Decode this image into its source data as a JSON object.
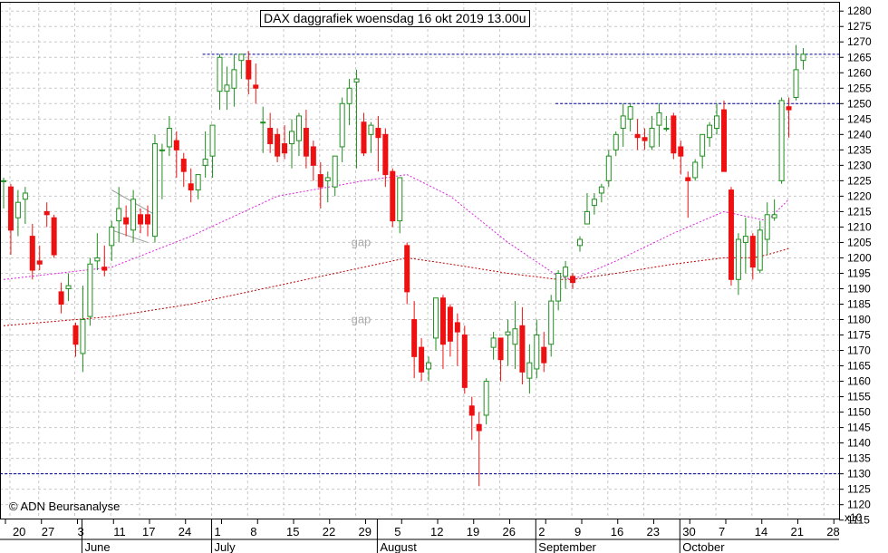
{
  "chart_data": {
    "type": "candlestick",
    "title": "DAX daggrafiek woensdag 16 okt 2019 13.00u",
    "copyright": "© ADN Beursanalyse",
    "y_axis": {
      "min": 1115,
      "max": 1280,
      "step": 5,
      "side": "right",
      "scale_label": "x10",
      "ticks": [
        1280,
        1275,
        1270,
        1265,
        1260,
        1255,
        1250,
        1245,
        1240,
        1235,
        1230,
        1225,
        1220,
        1215,
        1210,
        1205,
        1200,
        1195,
        1190,
        1185,
        1180,
        1175,
        1170,
        1165,
        1160,
        1155,
        1150,
        1145,
        1140,
        1135,
        1130,
        1125,
        1120,
        1115
      ]
    },
    "x_axis": {
      "day_ticks": [
        "20",
        "27",
        "3",
        "11",
        "17",
        "24",
        "1",
        "8",
        "15",
        "22",
        "29",
        "5",
        "12",
        "19",
        "26",
        "2",
        "9",
        "16",
        "23",
        "30",
        "7",
        "14",
        "21",
        "28"
      ],
      "month_labels": [
        "June",
        "July",
        "August",
        "September",
        "October"
      ]
    },
    "grid": true,
    "colors": {
      "up": "#1f8f1f",
      "down": "#ee1111",
      "ma_short": "#dd22dd",
      "ma_long": "#bb0000",
      "level": "#000099"
    },
    "candles": [
      {
        "o": 1225,
        "h": 1226,
        "l": 1216,
        "c": 1225
      },
      {
        "o": 1223,
        "h": 1224,
        "l": 1201,
        "c": 1209
      },
      {
        "o": 1213,
        "h": 1222,
        "l": 1207,
        "c": 1218
      },
      {
        "o": 1219,
        "h": 1223,
        "l": 1211,
        "c": 1221
      },
      {
        "o": 1207,
        "h": 1211,
        "l": 1193,
        "c": 1196
      },
      {
        "o": 1199,
        "h": 1204,
        "l": 1196,
        "c": 1198
      },
      {
        "o": 1215,
        "h": 1218,
        "l": 1210,
        "c": 1214
      },
      {
        "o": 1213,
        "h": 1214,
        "l": 1200,
        "c": 1201
      },
      {
        "o": 1189,
        "h": 1192,
        "l": 1182,
        "c": 1185
      },
      {
        "o": 1190,
        "h": 1195,
        "l": 1186,
        "c": 1191
      },
      {
        "o": 1178,
        "h": 1179,
        "l": 1168,
        "c": 1172
      },
      {
        "o": 1169,
        "h": 1191,
        "l": 1163,
        "c": 1180
      },
      {
        "o": 1181,
        "h": 1200,
        "l": 1178,
        "c": 1198
      },
      {
        "o": 1199,
        "h": 1208,
        "l": 1196,
        "c": 1200
      },
      {
        "o": 1197,
        "h": 1204,
        "l": 1194,
        "c": 1196
      },
      {
        "o": 1204,
        "h": 1212,
        "l": 1199,
        "c": 1210
      },
      {
        "o": 1212,
        "h": 1223,
        "l": 1205,
        "c": 1216
      },
      {
        "o": 1213,
        "h": 1217,
        "l": 1207,
        "c": 1211
      },
      {
        "o": 1209,
        "h": 1222,
        "l": 1205,
        "c": 1219
      },
      {
        "o": 1214,
        "h": 1216,
        "l": 1208,
        "c": 1211
      },
      {
        "o": 1214,
        "h": 1217,
        "l": 1207,
        "c": 1211
      },
      {
        "o": 1207,
        "h": 1240,
        "l": 1205,
        "c": 1237
      },
      {
        "o": 1235,
        "h": 1237,
        "l": 1219,
        "c": 1235
      },
      {
        "o": 1236,
        "h": 1246,
        "l": 1233,
        "c": 1242
      },
      {
        "o": 1238,
        "h": 1241,
        "l": 1226,
        "c": 1235
      },
      {
        "o": 1232,
        "h": 1234,
        "l": 1223,
        "c": 1228
      },
      {
        "o": 1224,
        "h": 1229,
        "l": 1218,
        "c": 1222
      },
      {
        "o": 1222,
        "h": 1227,
        "l": 1219,
        "c": 1227
      },
      {
        "o": 1230,
        "h": 1241,
        "l": 1226,
        "c": 1232
      },
      {
        "o": 1233,
        "h": 1243,
        "l": 1226,
        "c": 1243
      },
      {
        "o": 1254,
        "h": 1266,
        "l": 1248,
        "c": 1265
      },
      {
        "o": 1254,
        "h": 1262,
        "l": 1248,
        "c": 1256
      },
      {
        "o": 1255,
        "h": 1266,
        "l": 1249,
        "c": 1261
      },
      {
        "o": 1264,
        "h": 1266,
        "l": 1258,
        "c": 1266
      },
      {
        "o": 1264,
        "h": 1267,
        "l": 1253,
        "c": 1258
      },
      {
        "o": 1256,
        "h": 1263,
        "l": 1250,
        "c": 1255
      },
      {
        "o": 1244,
        "h": 1249,
        "l": 1234,
        "c": 1244
      },
      {
        "o": 1242,
        "h": 1247,
        "l": 1234,
        "c": 1237
      },
      {
        "o": 1240,
        "h": 1242,
        "l": 1231,
        "c": 1233
      },
      {
        "o": 1237,
        "h": 1243,
        "l": 1232,
        "c": 1234
      },
      {
        "o": 1237,
        "h": 1245,
        "l": 1229,
        "c": 1241
      },
      {
        "o": 1238,
        "h": 1247,
        "l": 1233,
        "c": 1246
      },
      {
        "o": 1242,
        "h": 1248,
        "l": 1229,
        "c": 1233
      },
      {
        "o": 1236,
        "h": 1238,
        "l": 1225,
        "c": 1230
      },
      {
        "o": 1227,
        "h": 1231,
        "l": 1216,
        "c": 1223
      },
      {
        "o": 1225,
        "h": 1228,
        "l": 1218,
        "c": 1226
      },
      {
        "o": 1223,
        "h": 1233,
        "l": 1220,
        "c": 1233
      },
      {
        "o": 1236,
        "h": 1252,
        "l": 1231,
        "c": 1250
      },
      {
        "o": 1250,
        "h": 1258,
        "l": 1243,
        "c": 1255
      },
      {
        "o": 1257,
        "h": 1261,
        "l": 1229,
        "c": 1258
      },
      {
        "o": 1244,
        "h": 1247,
        "l": 1233,
        "c": 1234
      },
      {
        "o": 1240,
        "h": 1244,
        "l": 1234,
        "c": 1243
      },
      {
        "o": 1242,
        "h": 1246,
        "l": 1228,
        "c": 1239
      },
      {
        "o": 1240,
        "h": 1242,
        "l": 1223,
        "c": 1227
      },
      {
        "o": 1228,
        "h": 1229,
        "l": 1210,
        "c": 1212
      },
      {
        "o": 1212,
        "h": 1226,
        "l": 1208,
        "c": 1226
      },
      {
        "o": 1204,
        "h": 1205,
        "l": 1185,
        "c": 1189
      },
      {
        "o": 1180,
        "h": 1186,
        "l": 1161,
        "c": 1168
      },
      {
        "o": 1171,
        "h": 1174,
        "l": 1160,
        "c": 1163
      },
      {
        "o": 1164,
        "h": 1168,
        "l": 1160,
        "c": 1166
      },
      {
        "o": 1174,
        "h": 1187,
        "l": 1170,
        "c": 1187
      },
      {
        "o": 1187,
        "h": 1188,
        "l": 1164,
        "c": 1172
      },
      {
        "o": 1184,
        "h": 1185,
        "l": 1168,
        "c": 1173
      },
      {
        "o": 1179,
        "h": 1182,
        "l": 1165,
        "c": 1176
      },
      {
        "o": 1175,
        "h": 1178,
        "l": 1156,
        "c": 1158
      },
      {
        "o": 1152,
        "h": 1155,
        "l": 1141,
        "c": 1149
      },
      {
        "o": 1146,
        "h": 1150,
        "l": 1126,
        "c": 1144
      },
      {
        "o": 1149,
        "h": 1161,
        "l": 1146,
        "c": 1160
      },
      {
        "o": 1171,
        "h": 1176,
        "l": 1167,
        "c": 1174
      },
      {
        "o": 1174,
        "h": 1174,
        "l": 1160,
        "c": 1167
      },
      {
        "o": 1175,
        "h": 1180,
        "l": 1165,
        "c": 1176
      },
      {
        "o": 1172,
        "h": 1186,
        "l": 1164,
        "c": 1177
      },
      {
        "o": 1178,
        "h": 1184,
        "l": 1159,
        "c": 1163
      },
      {
        "o": 1161,
        "h": 1172,
        "l": 1156,
        "c": 1166
      },
      {
        "o": 1164,
        "h": 1180,
        "l": 1161,
        "c": 1175
      },
      {
        "o": 1171,
        "h": 1176,
        "l": 1163,
        "c": 1166
      },
      {
        "o": 1172,
        "h": 1188,
        "l": 1168,
        "c": 1186
      },
      {
        "o": 1186,
        "h": 1196,
        "l": 1183,
        "c": 1195
      },
      {
        "o": 1194,
        "h": 1199,
        "l": 1190,
        "c": 1197
      },
      {
        "o": 1194,
        "h": 1195,
        "l": 1190,
        "c": 1192
      },
      {
        "o": 1204,
        "h": 1207,
        "l": 1202,
        "c": 1206
      },
      {
        "o": 1211,
        "h": 1221,
        "l": 1211,
        "c": 1215
      },
      {
        "o": 1217,
        "h": 1221,
        "l": 1214,
        "c": 1219
      },
      {
        "o": 1221,
        "h": 1224,
        "l": 1218,
        "c": 1223
      },
      {
        "o": 1225,
        "h": 1235,
        "l": 1223,
        "c": 1233
      },
      {
        "o": 1235,
        "h": 1241,
        "l": 1233,
        "c": 1240
      },
      {
        "o": 1242,
        "h": 1250,
        "l": 1236,
        "c": 1246
      },
      {
        "o": 1245,
        "h": 1250,
        "l": 1241,
        "c": 1249
      },
      {
        "o": 1240,
        "h": 1245,
        "l": 1235,
        "c": 1239
      },
      {
        "o": 1239,
        "h": 1242,
        "l": 1235,
        "c": 1238
      },
      {
        "o": 1236,
        "h": 1246,
        "l": 1235,
        "c": 1242
      },
      {
        "o": 1243,
        "h": 1250,
        "l": 1236,
        "c": 1247
      },
      {
        "o": 1242,
        "h": 1246,
        "l": 1241,
        "c": 1242
      },
      {
        "o": 1246,
        "h": 1247,
        "l": 1232,
        "c": 1234
      },
      {
        "o": 1236,
        "h": 1238,
        "l": 1227,
        "c": 1233
      },
      {
        "o": 1226,
        "h": 1228,
        "l": 1213,
        "c": 1225
      },
      {
        "o": 1226,
        "h": 1232,
        "l": 1225,
        "c": 1231
      },
      {
        "o": 1233,
        "h": 1240,
        "l": 1229,
        "c": 1240
      },
      {
        "o": 1239,
        "h": 1244,
        "l": 1236,
        "c": 1243
      },
      {
        "o": 1242,
        "h": 1250,
        "l": 1240,
        "c": 1246
      },
      {
        "o": 1248,
        "h": 1251,
        "l": 1228,
        "c": 1228
      },
      {
        "o": 1222,
        "h": 1223,
        "l": 1191,
        "c": 1193
      },
      {
        "o": 1193,
        "h": 1208,
        "l": 1188,
        "c": 1206
      },
      {
        "o": 1205,
        "h": 1213,
        "l": 1195,
        "c": 1207
      },
      {
        "o": 1207,
        "h": 1208,
        "l": 1193,
        "c": 1197
      },
      {
        "o": 1196,
        "h": 1212,
        "l": 1195,
        "c": 1209
      },
      {
        "o": 1206,
        "h": 1218,
        "l": 1201,
        "c": 1214
      },
      {
        "o": 1213,
        "h": 1219,
        "l": 1212,
        "c": 1214
      },
      {
        "o": 1225,
        "h": 1252,
        "l": 1224,
        "c": 1251
      },
      {
        "o": 1249,
        "h": 1252,
        "l": 1239,
        "c": 1248
      },
      {
        "o": 1252,
        "h": 1269,
        "l": 1251,
        "c": 1261
      },
      {
        "o": 1264,
        "h": 1268,
        "l": 1261,
        "c": 1266
      }
    ],
    "moving_averages": [
      {
        "color": "#dd22dd",
        "points": [
          [
            0,
            1193
          ],
          [
            15,
            1197
          ],
          [
            26,
            1207
          ],
          [
            38,
            1220
          ],
          [
            50,
            1225
          ],
          [
            56,
            1227
          ],
          [
            62,
            1220
          ],
          [
            70,
            1205
          ],
          [
            77,
            1194
          ],
          [
            79,
            1193
          ],
          [
            85,
            1199
          ],
          [
            93,
            1208
          ],
          [
            100,
            1215
          ],
          [
            104,
            1213
          ],
          [
            106,
            1212
          ],
          [
            109,
            1219
          ]
        ]
      },
      {
        "color": "#bb0000",
        "points": [
          [
            0,
            1178
          ],
          [
            15,
            1181
          ],
          [
            26,
            1185
          ],
          [
            38,
            1191
          ],
          [
            50,
            1197
          ],
          [
            56,
            1200
          ],
          [
            62,
            1198
          ],
          [
            70,
            1195
          ],
          [
            77,
            1193
          ],
          [
            79,
            1193
          ],
          [
            85,
            1195
          ],
          [
            93,
            1198
          ],
          [
            100,
            1200
          ],
          [
            104,
            1200
          ],
          [
            106,
            1201
          ],
          [
            109,
            1203
          ]
        ]
      }
    ],
    "horizontal_levels": [
      {
        "value": 1266,
        "from": 28
      },
      {
        "value": 1250,
        "from": 77
      },
      {
        "value": 1130,
        "from": 0
      }
    ],
    "trendlines": [
      {
        "from": [
          15,
          1222
        ],
        "to": [
          21,
          1214
        ]
      },
      {
        "from": [
          15,
          1209
        ],
        "to": [
          20,
          1205
        ]
      }
    ],
    "annotations": [
      {
        "text": "gap",
        "index": 48,
        "value": 1205
      },
      {
        "text": "gap",
        "index": 48,
        "value": 1180
      }
    ]
  }
}
